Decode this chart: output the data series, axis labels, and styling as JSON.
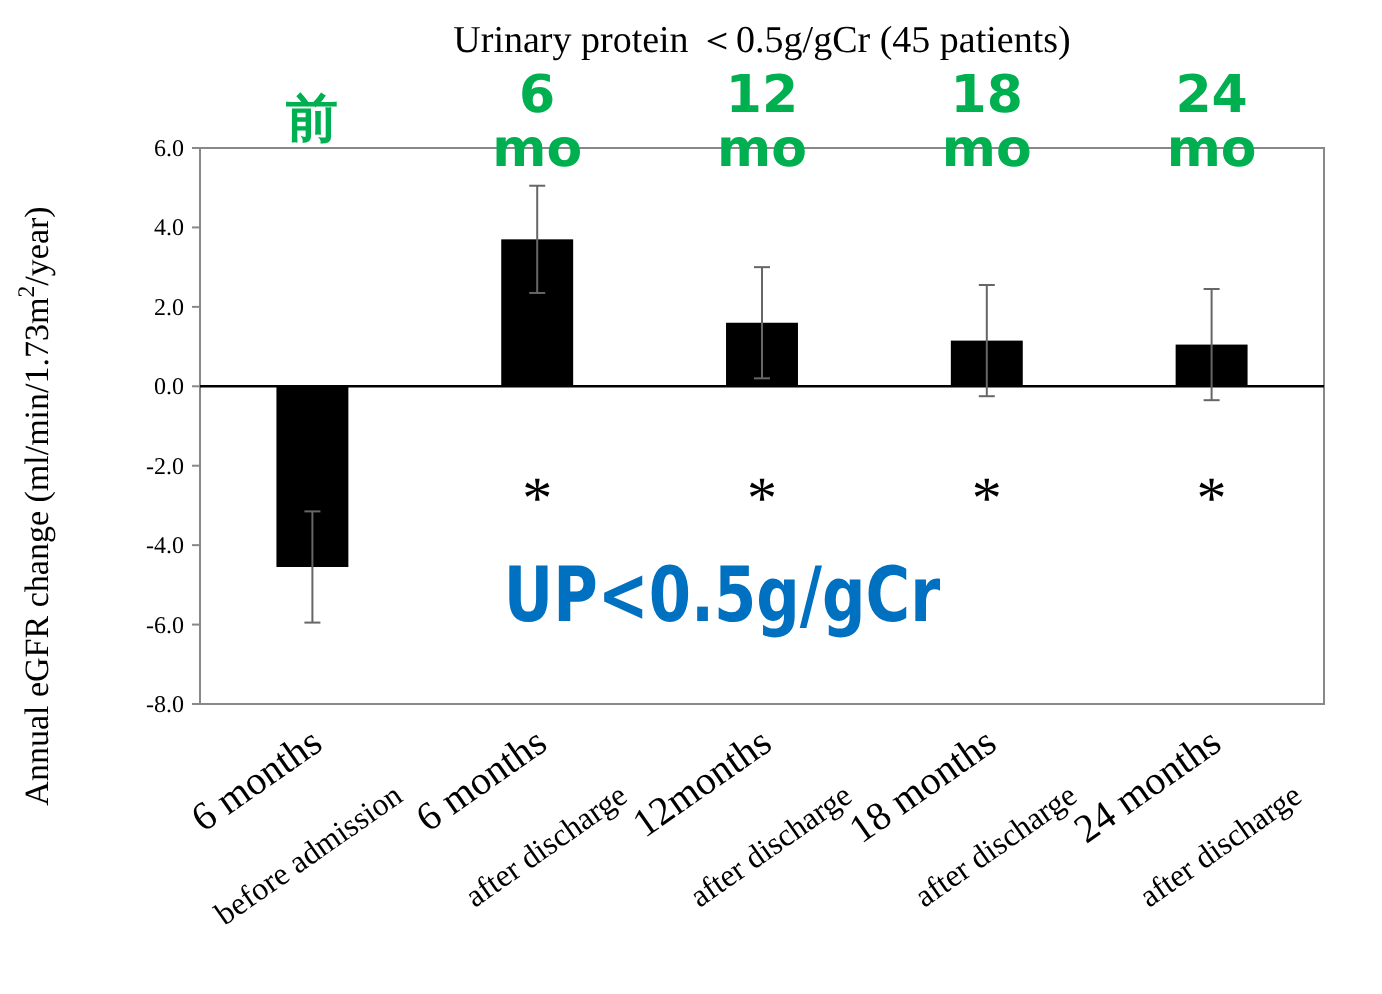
{
  "chart_data": {
    "type": "bar",
    "title": "Urinary protein ＜0.5g/gCr (45 patients)",
    "ylabel": "Annual eGFR change (ml/min/1.73m$^{2}$/year)",
    "categories": [
      "6 months\nbefore admission",
      "6 months\nafter discharge",
      "12months\nafter discharge",
      "18 months\nafter discharge",
      "24 months\nafter discharge"
    ],
    "values": [
      -4.55,
      3.7,
      1.6,
      1.15,
      1.05
    ],
    "errors": [
      1.4,
      1.35,
      1.4,
      1.4,
      1.4
    ],
    "color": "#000000",
    "ylim": [
      -8,
      6
    ],
    "yticks": [
      {
        "value": -8,
        "label": "-8.0"
      },
      {
        "value": -6,
        "label": "-6.0"
      },
      {
        "value": -4,
        "label": "-4.0"
      },
      {
        "value": -2,
        "label": "-2.0"
      },
      {
        "value": 0,
        "label": "0.0"
      },
      {
        "value": 2,
        "label": "2.0"
      },
      {
        "value": 4,
        "label": "4.0"
      },
      {
        "value": 6,
        "label": "6.0"
      }
    ],
    "annotations": [
      "前",
      "6\nmo",
      "12\nmo",
      "18\nmo",
      "24\nmo",
      "*",
      "*",
      "*",
      "*",
      "UP<0.5g/gCr"
    ]
  }
}
